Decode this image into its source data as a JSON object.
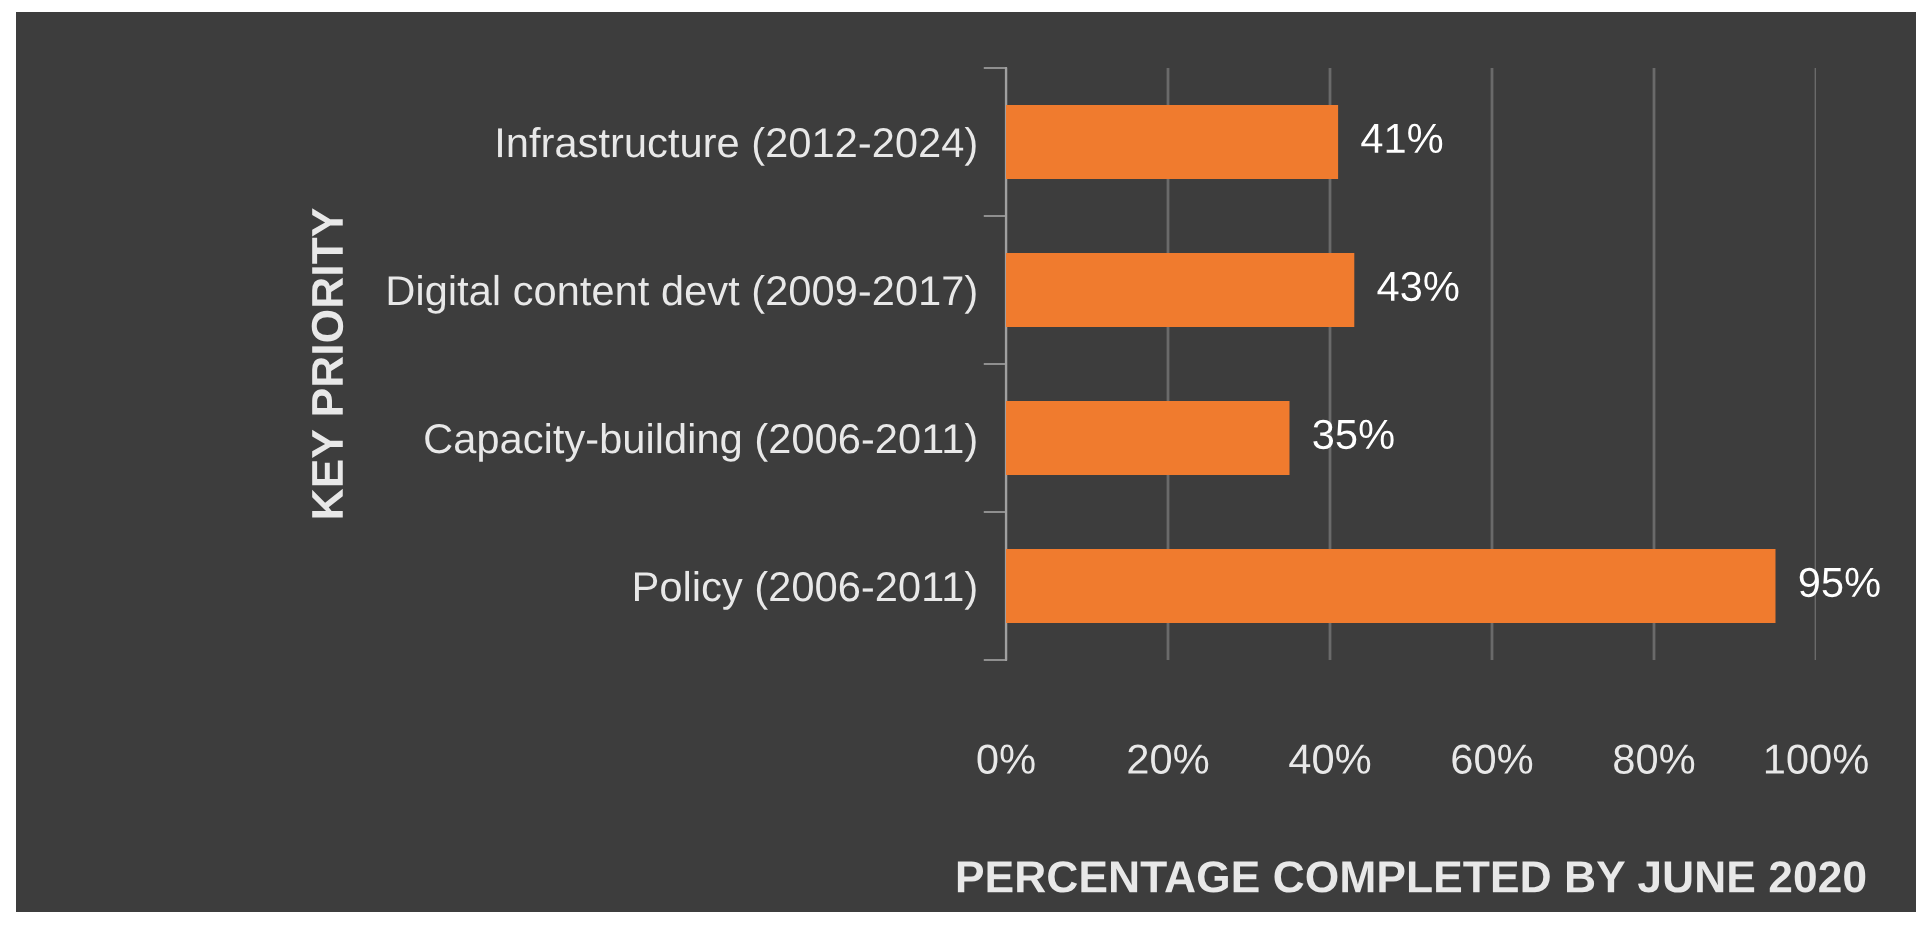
{
  "chart_data": {
    "type": "bar",
    "orientation": "horizontal",
    "xlabel": "PERCENTAGE COMPLETED BY JUNE 2020",
    "ylabel": "KEY PRIORITY",
    "categories": [
      "Infrastructure (2012-2024)",
      "Digital content devt (2009-2017)",
      "Capacity-building (2006-2011)",
      "Policy (2006-2011)"
    ],
    "values": [
      41,
      43,
      35,
      95
    ],
    "value_labels": [
      "41%",
      "43%",
      "35%",
      "95%"
    ],
    "color": "#f07b2e",
    "xlim": [
      0,
      100
    ],
    "xticks": [
      {
        "value": 0,
        "label": "0%"
      },
      {
        "value": 20,
        "label": "20%"
      },
      {
        "value": 40,
        "label": "40%"
      },
      {
        "value": 60,
        "label": "60%"
      },
      {
        "value": 80,
        "label": "80%"
      },
      {
        "value": 100,
        "label": "100%"
      }
    ],
    "grid": "x"
  }
}
